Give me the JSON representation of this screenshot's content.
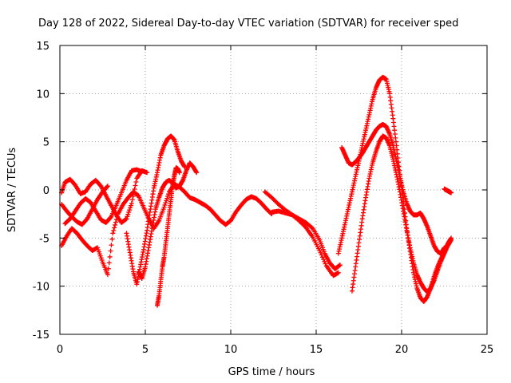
{
  "chart_data": {
    "type": "scatter",
    "title": "Day 128 of 2022, Sidereal Day-to-day VTEC variation (SDTVAR) for receiver sped",
    "xlabel": "GPS time / hours",
    "ylabel": "SDTVAR / TECUs",
    "xlim": [
      0,
      25
    ],
    "ylim": [
      -15,
      15
    ],
    "xticks": [
      "0",
      "5",
      "10",
      "15",
      "20",
      "25"
    ],
    "yticks": [
      "15",
      "10",
      "5",
      "0",
      "-5",
      "-10",
      "-15"
    ],
    "xtick_values": [
      0,
      5,
      10,
      15,
      20,
      25
    ],
    "ytick_values": [
      15,
      10,
      5,
      0,
      -5,
      -10,
      -15
    ],
    "grid": true,
    "marker": "+",
    "color": "#ff0000",
    "series": [
      {
        "name": "trace-1",
        "x": [
          0.1,
          0.4,
          0.7,
          1.0,
          1.3,
          1.6,
          1.9,
          2.2,
          2.5,
          2.8,
          3.1,
          3.4,
          3.7,
          4.0,
          4.3,
          4.6,
          4.9,
          5.2,
          5.5,
          5.8,
          6.1,
          6.4,
          6.7,
          7.0,
          7.3,
          7.6,
          7.9,
          8.2,
          8.5,
          8.8,
          9.1,
          9.4,
          9.7,
          10.0,
          10.3,
          10.6,
          10.9,
          11.2,
          11.5,
          11.8,
          12.1,
          12.4
        ],
        "y": [
          -5.8,
          -4.8,
          -4.0,
          -4.5,
          -5.2,
          -5.8,
          -6.3,
          -6.0,
          -7.5,
          -8.8,
          -4.5,
          -2.5,
          -1.5,
          -0.8,
          -0.2,
          -0.6,
          -1.8,
          -3.0,
          -4.0,
          -3.2,
          -1.8,
          -0.2,
          0.6,
          0.3,
          -0.2,
          -0.8,
          -1.0,
          -1.3,
          -1.6,
          -2.0,
          -2.6,
          -3.2,
          -3.6,
          -3.2,
          -2.3,
          -1.6,
          -1.0,
          -0.7,
          -0.9,
          -1.4,
          -2.0,
          -2.5
        ]
      },
      {
        "name": "trace-2",
        "x": [
          0.1,
          0.3,
          0.6,
          0.9,
          1.2,
          1.5,
          1.8,
          2.1,
          2.4,
          2.7,
          3.0,
          3.3,
          3.6,
          3.9,
          4.2,
          4.5,
          4.8,
          5.1
        ],
        "y": [
          -0.3,
          0.8,
          1.1,
          0.5,
          -0.4,
          -0.2,
          0.6,
          1.0,
          0.4,
          -0.6,
          -1.6,
          -2.6,
          -3.4,
          -3.0,
          -1.4,
          1.2,
          2.0,
          1.8
        ]
      },
      {
        "name": "trace-3",
        "x": [
          0.1,
          0.4,
          0.7,
          1.0,
          1.3,
          1.6,
          1.9,
          2.2,
          2.5,
          2.8
        ],
        "y": [
          -1.5,
          -2.2,
          -2.8,
          -3.3,
          -3.6,
          -3.0,
          -2.0,
          -1.0,
          -0.2,
          0.4
        ]
      },
      {
        "name": "trace-4",
        "x": [
          0.3,
          0.6,
          0.9,
          1.2,
          1.5,
          1.8,
          2.1,
          2.4,
          2.7,
          3.0,
          3.3,
          3.6,
          3.9,
          4.2,
          4.5,
          4.8
        ],
        "y": [
          -3.5,
          -3.0,
          -2.2,
          -1.4,
          -0.9,
          -1.3,
          -2.2,
          -3.1,
          -3.4,
          -2.8,
          -1.6,
          -0.3,
          1.0,
          2.0,
          2.1,
          1.9
        ]
      },
      {
        "name": "trace-5",
        "x": [
          3.9,
          4.1,
          4.3,
          4.5,
          4.7,
          4.9,
          5.1,
          5.3,
          5.5,
          5.7,
          5.9,
          6.1,
          6.3,
          6.5,
          6.7,
          6.9,
          7.1,
          7.3
        ],
        "y": [
          -4.5,
          -6.5,
          -8.5,
          -9.8,
          -8.0,
          -6.2,
          -4.2,
          -2.0,
          0.2,
          1.8,
          3.6,
          4.6,
          5.3,
          5.6,
          5.2,
          4.0,
          3.0,
          2.4
        ]
      },
      {
        "name": "trace-6",
        "x": [
          4.6,
          4.8,
          5.0,
          5.2,
          5.4,
          5.6,
          5.8,
          6.0,
          6.2,
          6.4,
          6.6,
          6.8,
          7.0,
          7.2,
          7.4,
          7.6,
          7.8,
          8.0
        ],
        "y": [
          -8.5,
          -9.2,
          -8.0,
          -6.0,
          -4.0,
          -2.0,
          -0.8,
          0.2,
          0.8,
          1.0,
          0.7,
          0.2,
          0.4,
          1.0,
          2.0,
          2.8,
          2.4,
          1.8
        ]
      },
      {
        "name": "trace-7",
        "x": [
          5.7,
          5.8,
          5.9,
          6.0,
          6.1,
          6.2,
          6.3,
          6.4,
          6.5,
          6.6,
          6.7,
          6.8,
          6.9,
          7.0
        ],
        "y": [
          -12.0,
          -11.0,
          -9.5,
          -8.0,
          -7.0,
          -5.5,
          -4.0,
          -2.5,
          -1.0,
          0.5,
          1.5,
          2.3,
          2.2,
          1.8
        ]
      },
      {
        "name": "trace-8",
        "x": [
          16.3,
          16.5,
          16.7,
          16.9,
          17.1,
          17.3,
          17.5,
          17.7,
          17.9,
          18.1,
          18.3,
          18.5,
          18.7,
          18.9,
          19.1,
          19.3,
          19.5,
          19.7,
          19.9,
          20.1,
          20.3,
          20.5,
          20.7,
          20.9,
          21.1,
          21.3,
          21.5,
          21.7,
          21.9,
          22.1,
          22.3,
          22.5,
          22.7,
          22.9
        ],
        "y": [
          -6.6,
          -5.0,
          -3.4,
          -1.8,
          -0.2,
          1.4,
          3.0,
          4.6,
          6.2,
          7.8,
          9.4,
          10.6,
          11.4,
          11.7,
          11.5,
          10.0,
          7.4,
          4.6,
          1.6,
          -1.2,
          -4.0,
          -6.4,
          -8.6,
          -10.2,
          -11.2,
          -11.6,
          -11.1,
          -10.2,
          -9.0,
          -8.0,
          -7.2,
          -6.4,
          -5.6,
          -5.0
        ]
      },
      {
        "name": "trace-9",
        "x": [
          16.5,
          16.7,
          16.9,
          17.1,
          17.3,
          17.5,
          17.7,
          17.9,
          18.1,
          18.3,
          18.5,
          18.7,
          18.9,
          19.1,
          19.3,
          19.5,
          19.7,
          19.9,
          20.1,
          20.3,
          20.5,
          20.7,
          20.9,
          21.1,
          21.3,
          21.5,
          21.7,
          21.9,
          22.1,
          22.3,
          22.5
        ],
        "y": [
          4.4,
          3.6,
          2.8,
          2.6,
          2.9,
          3.3,
          3.8,
          4.4,
          5.0,
          5.6,
          6.2,
          6.6,
          6.8,
          6.6,
          5.8,
          4.6,
          3.0,
          1.4,
          -0.2,
          -1.4,
          -2.2,
          -2.6,
          -2.6,
          -2.4,
          -3.0,
          -3.8,
          -4.8,
          -5.8,
          -6.4,
          -6.6,
          -6.0
        ]
      },
      {
        "name": "trace-10",
        "x": [
          17.1,
          17.3,
          17.5,
          17.7,
          17.9,
          18.1,
          18.3,
          18.5,
          18.7,
          18.9,
          19.1,
          19.3,
          19.5,
          19.7,
          19.9,
          20.1,
          20.3,
          20.5,
          20.7,
          20.9,
          21.1,
          21.3,
          21.5,
          21.7,
          21.9,
          22.1,
          22.3,
          22.5,
          22.7,
          22.9
        ],
        "y": [
          -10.5,
          -8.0,
          -5.5,
          -3.0,
          -0.8,
          1.2,
          2.8,
          4.0,
          5.0,
          5.6,
          5.4,
          4.6,
          3.2,
          1.6,
          -0.2,
          -2.2,
          -4.2,
          -6.0,
          -7.6,
          -8.8,
          -9.6,
          -10.2,
          -10.6,
          -10.2,
          -9.4,
          -8.4,
          -7.4,
          -6.6,
          -5.8,
          -5.2
        ]
      },
      {
        "name": "trace-11",
        "x": [
          12.4,
          12.8,
          13.2,
          13.6,
          14.0,
          14.4,
          14.8,
          15.2,
          15.5,
          15.8,
          16.1,
          16.4
        ],
        "y": [
          -2.3,
          -2.2,
          -2.4,
          -2.6,
          -3.0,
          -3.4,
          -4.0,
          -5.2,
          -6.6,
          -7.6,
          -8.2,
          -7.8
        ]
      },
      {
        "name": "trace-12",
        "x": [
          12.0,
          12.4,
          12.8,
          13.2,
          13.6,
          14.0,
          14.4,
          14.8,
          15.2,
          15.6,
          16.0,
          16.3
        ],
        "y": [
          -0.2,
          -0.8,
          -1.5,
          -2.1,
          -2.6,
          -3.2,
          -3.9,
          -4.9,
          -6.3,
          -7.9,
          -8.9,
          -8.6
        ]
      },
      {
        "name": "trace-13",
        "x": [
          22.5,
          22.6,
          22.7,
          22.8,
          22.9
        ],
        "y": [
          0.1,
          0.0,
          -0.1,
          -0.2,
          -0.3
        ]
      }
    ]
  }
}
